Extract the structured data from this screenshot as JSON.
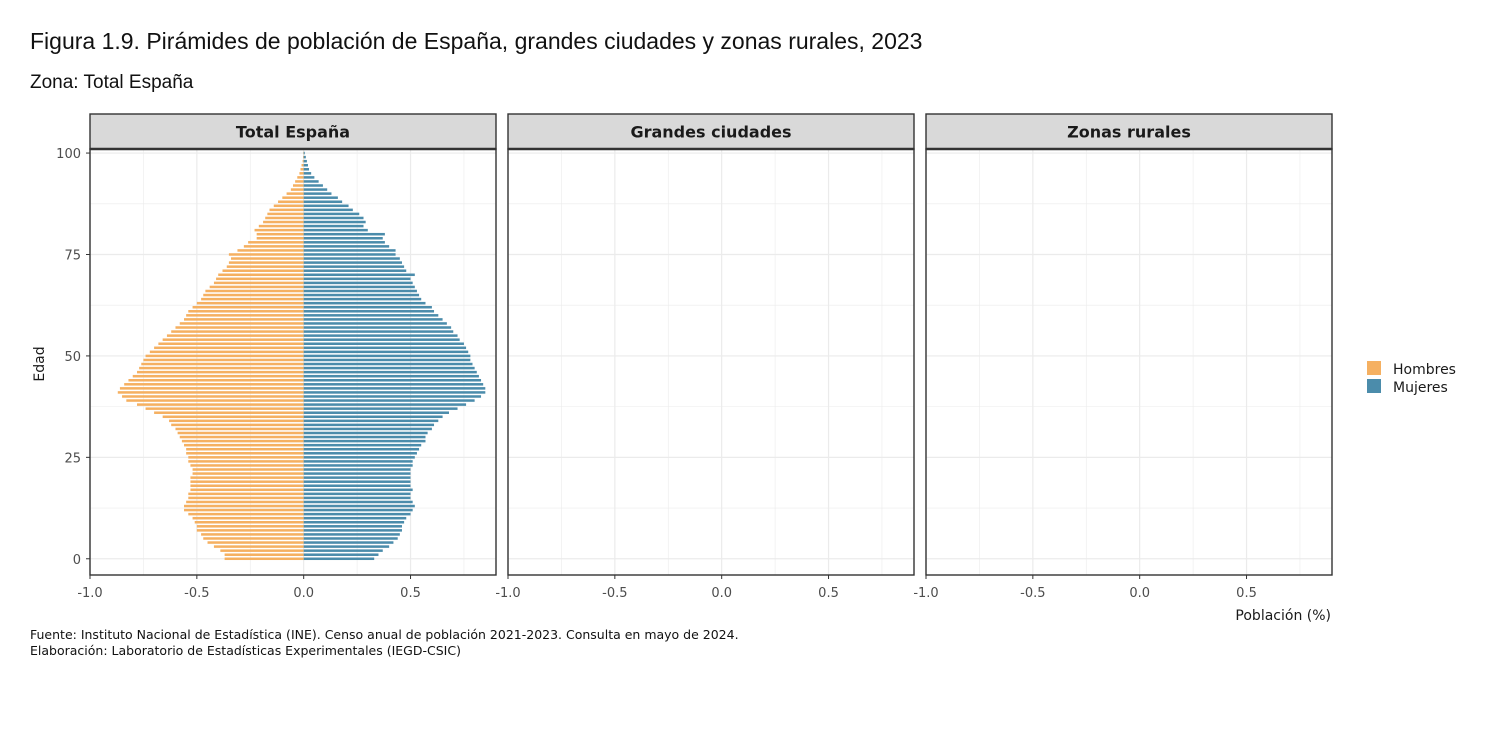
{
  "title": "Figura 1.9. Pirámides de población de España, grandes ciudades y zonas rurales, 2023",
  "subtitle": "Zona: Total España",
  "caption": {
    "source": "Fuente: Instituto Nacional de Estadística (INE). Censo anual de población 2021-2023. Consulta en mayo de 2024.",
    "credit": "Elaboración: Laboratorio de Estadísticas Experimentales (IEGD-CSIC)"
  },
  "colors": {
    "Hombres": "#F5B061",
    "Mujeres": "#4B8CAB",
    "strip_bg": "#D9D9D9",
    "grid": "#EBEBEB",
    "border": "#333333"
  },
  "chart_data": {
    "type": "bar",
    "orientation": "horizontal",
    "xlabel": "Población (%)",
    "ylabel": "Edad",
    "xlim": [
      -1.0,
      0.9
    ],
    "ylim": [
      -4,
      101
    ],
    "x_ticks": [
      "-1.0",
      "-0.5",
      "0.0",
      "0.5"
    ],
    "y_ticks": [
      "0",
      "25",
      "50",
      "75",
      "100"
    ],
    "grid": true,
    "legend": {
      "position": "right",
      "entries": [
        "Hombres",
        "Mujeres"
      ]
    },
    "facets": [
      "Total España",
      "Grandes ciudades",
      "Zonas rurales"
    ],
    "series": [
      {
        "name": "Hombres",
        "facet": "Total España",
        "ages": [
          0,
          1,
          2,
          3,
          4,
          5,
          6,
          7,
          8,
          9,
          10,
          11,
          12,
          13,
          14,
          15,
          16,
          17,
          18,
          19,
          20,
          21,
          22,
          23,
          24,
          25,
          26,
          27,
          28,
          29,
          30,
          31,
          32,
          33,
          34,
          35,
          36,
          37,
          38,
          39,
          40,
          41,
          42,
          43,
          44,
          45,
          46,
          47,
          48,
          49,
          50,
          51,
          52,
          53,
          54,
          55,
          56,
          57,
          58,
          59,
          60,
          61,
          62,
          63,
          64,
          65,
          66,
          67,
          68,
          69,
          70,
          71,
          72,
          73,
          74,
          75,
          76,
          77,
          78,
          79,
          80,
          81,
          82,
          83,
          84,
          85,
          86,
          87,
          88,
          89,
          90,
          91,
          92,
          93,
          94,
          95,
          96,
          97,
          98,
          99,
          100
        ],
        "values": [
          -0.37,
          -0.37,
          -0.39,
          -0.42,
          -0.45,
          -0.47,
          -0.48,
          -0.5,
          -0.5,
          -0.51,
          -0.52,
          -0.54,
          -0.56,
          -0.56,
          -0.55,
          -0.54,
          -0.54,
          -0.53,
          -0.53,
          -0.53,
          -0.53,
          -0.52,
          -0.52,
          -0.53,
          -0.54,
          -0.54,
          -0.55,
          -0.55,
          -0.56,
          -0.57,
          -0.58,
          -0.59,
          -0.6,
          -0.62,
          -0.63,
          -0.66,
          -0.7,
          -0.74,
          -0.78,
          -0.83,
          -0.85,
          -0.87,
          -0.86,
          -0.84,
          -0.82,
          -0.8,
          -0.78,
          -0.77,
          -0.76,
          -0.75,
          -0.74,
          -0.72,
          -0.7,
          -0.68,
          -0.66,
          -0.64,
          -0.62,
          -0.6,
          -0.58,
          -0.56,
          -0.55,
          -0.54,
          -0.52,
          -0.5,
          -0.48,
          -0.47,
          -0.46,
          -0.44,
          -0.42,
          -0.41,
          -0.4,
          -0.38,
          -0.36,
          -0.35,
          -0.34,
          -0.35,
          -0.31,
          -0.28,
          -0.26,
          -0.22,
          -0.22,
          -0.23,
          -0.21,
          -0.19,
          -0.18,
          -0.17,
          -0.16,
          -0.14,
          -0.12,
          -0.1,
          -0.08,
          -0.06,
          -0.05,
          -0.04,
          -0.03,
          -0.02,
          -0.015,
          -0.01,
          -0.005,
          -0.003,
          -0.002
        ]
      },
      {
        "name": "Mujeres",
        "facet": "Total España",
        "ages": [
          0,
          1,
          2,
          3,
          4,
          5,
          6,
          7,
          8,
          9,
          10,
          11,
          12,
          13,
          14,
          15,
          16,
          17,
          18,
          19,
          20,
          21,
          22,
          23,
          24,
          25,
          26,
          27,
          28,
          29,
          30,
          31,
          32,
          33,
          34,
          35,
          36,
          37,
          38,
          39,
          40,
          41,
          42,
          43,
          44,
          45,
          46,
          47,
          48,
          49,
          50,
          51,
          52,
          53,
          54,
          55,
          56,
          57,
          58,
          59,
          60,
          61,
          62,
          63,
          64,
          65,
          66,
          67,
          68,
          69,
          70,
          71,
          72,
          73,
          74,
          75,
          76,
          77,
          78,
          79,
          80,
          81,
          82,
          83,
          84,
          85,
          86,
          87,
          88,
          89,
          90,
          91,
          92,
          93,
          94,
          95,
          96,
          97,
          98,
          99,
          100
        ],
        "values": [
          0.33,
          0.35,
          0.37,
          0.4,
          0.42,
          0.44,
          0.45,
          0.46,
          0.46,
          0.47,
          0.48,
          0.5,
          0.51,
          0.52,
          0.51,
          0.5,
          0.5,
          0.51,
          0.5,
          0.5,
          0.5,
          0.5,
          0.5,
          0.51,
          0.51,
          0.52,
          0.53,
          0.54,
          0.55,
          0.57,
          0.57,
          0.58,
          0.6,
          0.61,
          0.63,
          0.65,
          0.68,
          0.72,
          0.76,
          0.8,
          0.83,
          0.85,
          0.85,
          0.84,
          0.83,
          0.82,
          0.81,
          0.8,
          0.79,
          0.78,
          0.78,
          0.77,
          0.76,
          0.75,
          0.73,
          0.72,
          0.7,
          0.69,
          0.67,
          0.65,
          0.63,
          0.61,
          0.6,
          0.57,
          0.55,
          0.54,
          0.53,
          0.52,
          0.51,
          0.5,
          0.52,
          0.48,
          0.47,
          0.46,
          0.45,
          0.43,
          0.43,
          0.4,
          0.38,
          0.37,
          0.38,
          0.3,
          0.28,
          0.29,
          0.28,
          0.26,
          0.23,
          0.21,
          0.18,
          0.16,
          0.13,
          0.11,
          0.09,
          0.07,
          0.05,
          0.035,
          0.025,
          0.02,
          0.015,
          0.01,
          0.005
        ]
      }
    ]
  }
}
